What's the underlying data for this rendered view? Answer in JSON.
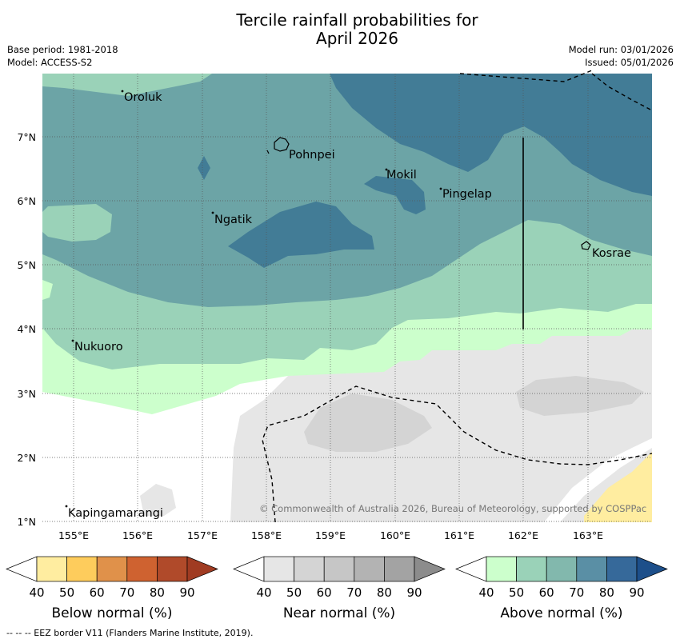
{
  "title_line1": "Tercile rainfall probabilities for",
  "title_line2": "April 2026",
  "meta_left": {
    "base_period": "Base period: 1981-2018",
    "model": "Model: ACCESS-S2"
  },
  "meta_right": {
    "model_run": "Model run: 03/01/2026",
    "issued": "Issued: 05/01/2026"
  },
  "map": {
    "lat_labels": [
      "7°N",
      "6°N",
      "5°N",
      "4°N",
      "3°N",
      "2°N",
      "1°N"
    ],
    "lon_labels": [
      "155°E",
      "156°E",
      "157°E",
      "158°E",
      "159°E",
      "160°E",
      "161°E",
      "162°E",
      "163°E"
    ],
    "places": [
      "Oroluk",
      "Pohnpei",
      "Mokil",
      "Pingelap",
      "Ngatik",
      "Kosrae",
      "Nukuoro",
      "Kapingamarangi"
    ],
    "copyright": "© Commonwealth of Australia 2026, Bureau of Meteorology, supported by COSPPac"
  },
  "legends": [
    {
      "caption": "Below normal (%)",
      "ticks": [
        "40",
        "50",
        "60",
        "70",
        "80",
        "90"
      ],
      "colors": [
        "#ffffff",
        "#ffeda0",
        "#fecc5c",
        "#e0914a",
        "#cf6230",
        "#b04a2a",
        "#a03b22"
      ]
    },
    {
      "caption": "Near normal (%)",
      "ticks": [
        "40",
        "50",
        "60",
        "70",
        "80",
        "90"
      ],
      "colors": [
        "#ffffff",
        "#e6e6e6",
        "#d4d4d4",
        "#c6c6c6",
        "#b3b3b3",
        "#a3a3a3",
        "#8c8c8c"
      ]
    },
    {
      "caption": "Above normal (%)",
      "ticks": [
        "40",
        "50",
        "60",
        "70",
        "80",
        "90"
      ],
      "colors": [
        "#ffffff",
        "#ccffcc",
        "#9ad2b8",
        "#82b8ad",
        "#5a8fa5",
        "#36699a",
        "#1d4f8a"
      ]
    }
  ],
  "footer": "--  --  -- EEZ border V11 (Flanders Marine Institute, 2019)."
}
